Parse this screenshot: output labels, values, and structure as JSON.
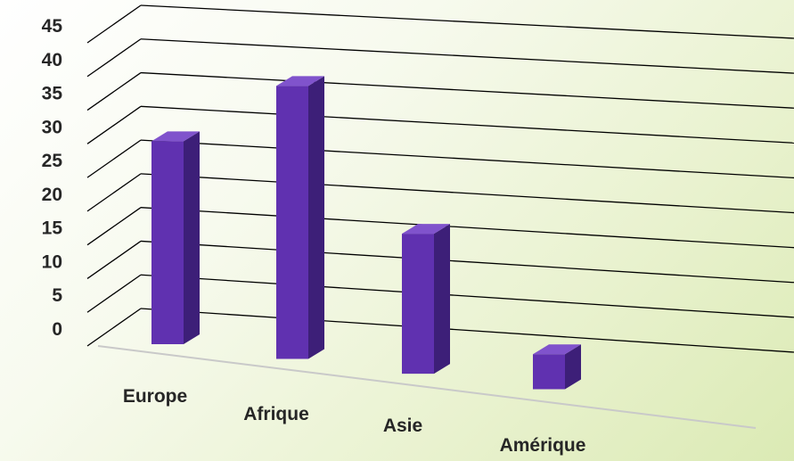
{
  "chart_data": {
    "type": "bar",
    "categories": [
      "Europe",
      "Afrique",
      "Asie",
      "Amérique"
    ],
    "values": [
      29,
      39,
      20,
      5
    ],
    "title": "",
    "xlabel": "",
    "ylabel": "",
    "ylim": [
      0,
      45
    ],
    "y_ticks": [
      "0",
      "5",
      "10",
      "15",
      "20",
      "25",
      "30",
      "35",
      "40",
      "45"
    ],
    "grid": true,
    "legend": "none",
    "perspective": "3d",
    "colors": {
      "bar_front": "#6031b0",
      "bar_side": "#3d1f78",
      "bar_top": "#8053cc",
      "gridline": "#000000",
      "floor": "#c9c9c9",
      "text": "#262626"
    }
  }
}
